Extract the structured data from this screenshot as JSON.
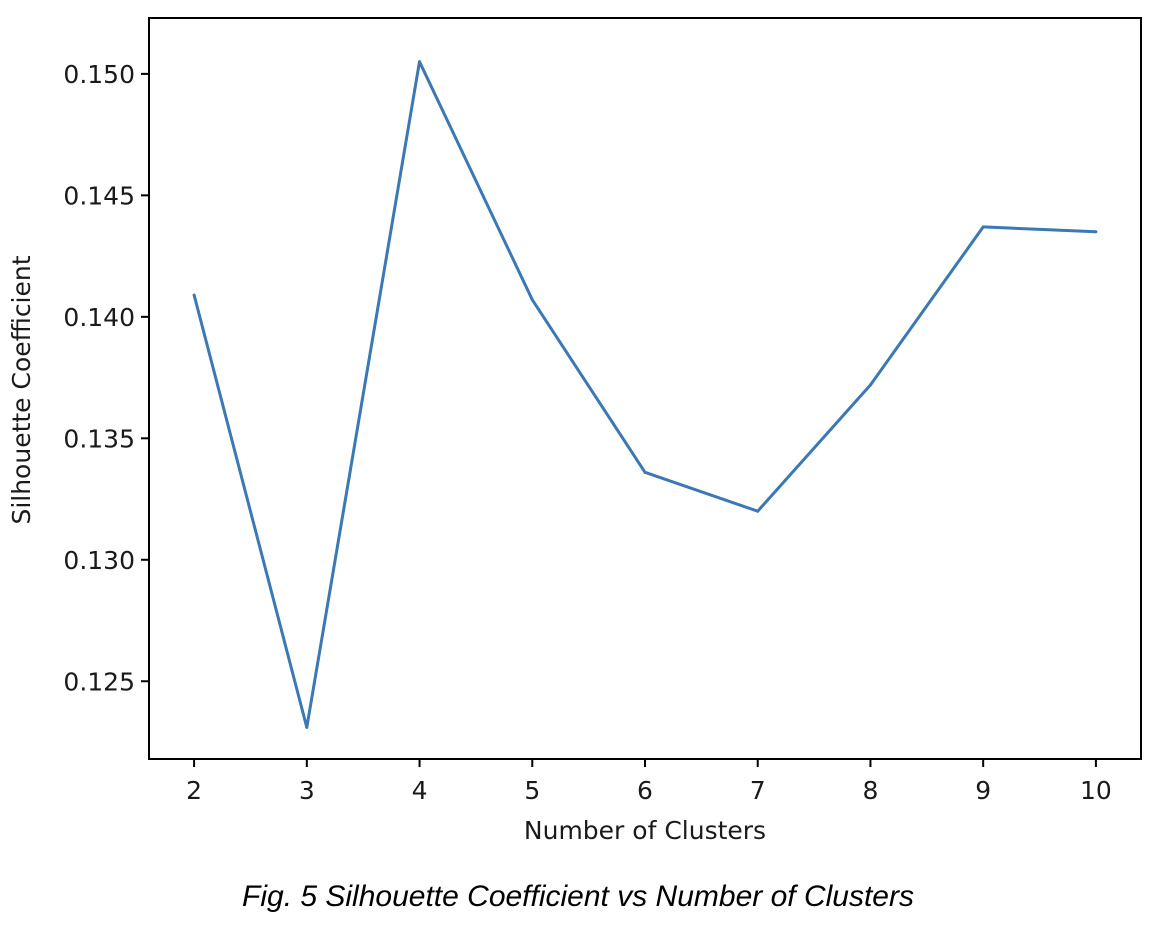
{
  "caption": "Fig. 5 Silhouette Coefficient vs Number of Clusters",
  "chart_data": {
    "type": "line",
    "title": "",
    "xlabel": "Number of Clusters",
    "ylabel": "Silhouette Coefficient",
    "x": [
      2,
      3,
      4,
      5,
      6,
      7,
      8,
      9,
      10
    ],
    "series": [
      {
        "values": [
          0.1409,
          0.1231,
          0.1505,
          0.1407,
          0.1336,
          0.132,
          0.1372,
          0.1437,
          0.1435
        ],
        "color": "#3b78b4"
      }
    ],
    "xticks": [
      "2",
      "3",
      "4",
      "5",
      "6",
      "7",
      "8",
      "9",
      "10"
    ],
    "yticks": [
      "0.125",
      "0.130",
      "0.135",
      "0.140",
      "0.145",
      "0.150"
    ],
    "xlim": [
      1.6,
      10.4
    ],
    "ylim": [
      0.1218,
      0.1523
    ],
    "grid": false
  }
}
